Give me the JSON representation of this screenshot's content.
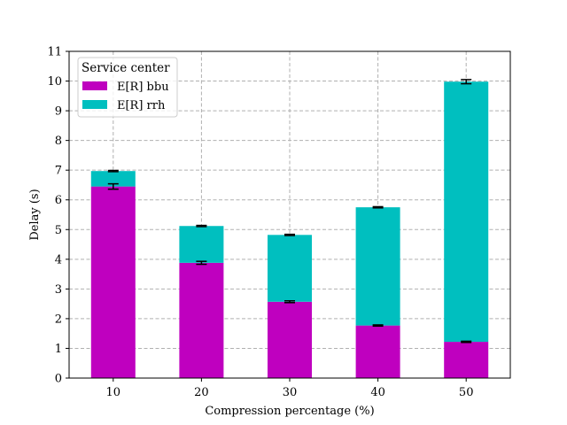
{
  "chart_data": {
    "type": "bar",
    "stacked": true,
    "xlabel": "Compression percentage (%)",
    "ylabel": "Delay (s)",
    "categories": [
      "10",
      "20",
      "30",
      "40",
      "50"
    ],
    "ylim": [
      0,
      11
    ],
    "yticks": [
      "0",
      "1",
      "2",
      "3",
      "4",
      "5",
      "6",
      "7",
      "8",
      "9",
      "10",
      "11"
    ],
    "grid": true,
    "legend": {
      "title": "Service center",
      "position": "top-left",
      "entries": [
        "E[R] bbu",
        "E[R] rrh"
      ]
    },
    "series": [
      {
        "name": "E[R] bbu",
        "color": "#bf00bf",
        "values": [
          6.45,
          3.88,
          2.57,
          1.77,
          1.22
        ],
        "error": [
          0.09,
          0.05,
          0.03,
          0.02,
          0.02
        ]
      },
      {
        "name": "E[R] rrh",
        "color": "#00bfbf",
        "values": [
          0.52,
          1.24,
          2.25,
          3.98,
          8.76
        ],
        "error": [
          0.02,
          0.02,
          0.02,
          0.02,
          0.07
        ]
      }
    ]
  }
}
